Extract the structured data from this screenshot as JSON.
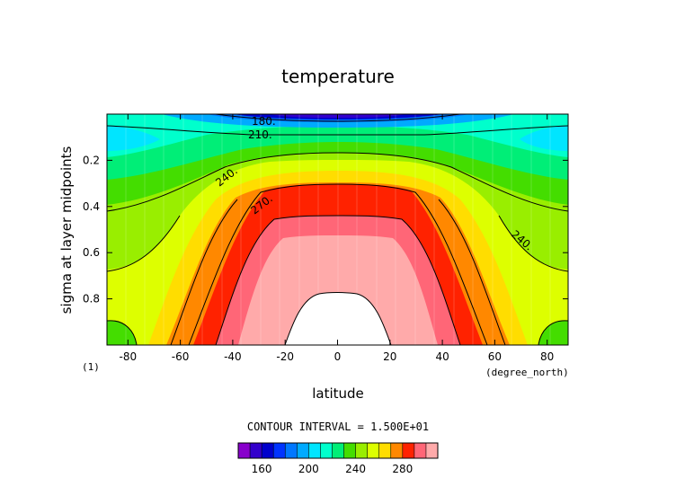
{
  "chart_data": {
    "type": "heatmap",
    "title": "temperature",
    "xlabel": "latitude",
    "x_units": "(degree_north)",
    "ylabel": "sigma at layer midpoints",
    "corner_label": "(1)",
    "xlim": [
      -88,
      88
    ],
    "ylim": [
      0.0,
      1.0
    ],
    "y_inverted": true,
    "x_ticks": [
      "-80",
      "-60",
      "-40",
      "-20",
      "0",
      "20",
      "40",
      "60",
      "80"
    ],
    "y_ticks": [
      "0.2",
      "0.4",
      "0.6",
      "0.8"
    ],
    "contour_interval_text": "CONTOUR INTERVAL = 1.500E+01",
    "contour_labels": [
      "180.",
      "210.",
      "240.",
      "270.",
      "240."
    ],
    "colorbar": {
      "tick_labels": [
        "160",
        "200",
        "240",
        "280"
      ],
      "levels": [
        140,
        150,
        160,
        170,
        180,
        190,
        200,
        210,
        220,
        230,
        240,
        250,
        260,
        270,
        280,
        290,
        300
      ],
      "colors": [
        "#8800cc",
        "#3300cc",
        "#0000cc",
        "#0033ff",
        "#0077ff",
        "#00aaff",
        "#00e5ff",
        "#00ffcc",
        "#00ee77",
        "#44dd00",
        "#99ee00",
        "#ddff00",
        "#ffdd00",
        "#ff8800",
        "#ff2200",
        "#ff6677",
        "#ffaaaa"
      ]
    },
    "grid": false
  }
}
